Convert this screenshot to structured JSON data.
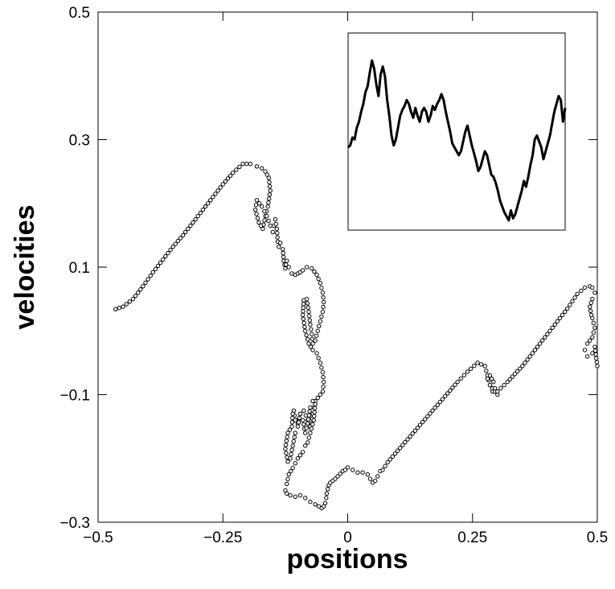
{
  "chart_data": [
    {
      "type": "scatter",
      "title": "",
      "xlabel": "positions",
      "ylabel": "velocities",
      "xlim": [
        -0.5,
        0.5
      ],
      "ylim": [
        -0.3,
        0.5
      ],
      "xticks": [
        -0.5,
        -0.25,
        0,
        0.25,
        0.5
      ],
      "xtick_labels": [
        "−0.5",
        "−0.25",
        "0",
        "0.25",
        "0.5"
      ],
      "yticks": [
        -0.3,
        -0.1,
        0.1,
        0.3,
        0.5
      ],
      "ytick_labels": [
        "−0.3",
        "−0.1",
        "0.1",
        "0.3",
        "0.5"
      ],
      "grid": false,
      "marker": "open-circle",
      "marker_color": "#000000",
      "series": [
        {
          "x": [
            -0.465,
            -0.45,
            -0.43,
            -0.41,
            -0.39,
            -0.37,
            -0.35,
            -0.33,
            -0.31,
            -0.29,
            -0.27,
            -0.25,
            -0.23,
            -0.21,
            -0.195,
            -0.182,
            -0.172,
            -0.165,
            -0.158,
            -0.155,
            -0.16,
            -0.165,
            -0.17,
            -0.178,
            -0.185,
            -0.182,
            -0.172,
            -0.162,
            -0.155,
            -0.15,
            -0.148,
            -0.145,
            -0.142,
            -0.14,
            -0.138,
            -0.135,
            -0.13,
            -0.128,
            -0.125,
            -0.122,
            -0.118,
            -0.112,
            -0.105,
            -0.1,
            -0.095,
            -0.09,
            -0.082,
            -0.072,
            -0.062,
            -0.055,
            -0.05,
            -0.048,
            -0.05,
            -0.055,
            -0.06,
            -0.065,
            -0.07,
            -0.072,
            -0.075,
            -0.078,
            -0.082,
            -0.088,
            -0.09,
            -0.085,
            -0.078,
            -0.07,
            -0.062,
            -0.055,
            -0.05,
            -0.048,
            -0.05,
            -0.055,
            -0.06,
            -0.065,
            -0.068,
            -0.07,
            -0.072,
            -0.075,
            -0.08,
            -0.088,
            -0.095,
            -0.1,
            -0.105,
            -0.108,
            -0.11,
            -0.112,
            -0.12,
            -0.125,
            -0.12,
            -0.115,
            -0.11,
            -0.105,
            -0.1,
            -0.095,
            -0.09,
            -0.085,
            -0.08,
            -0.075,
            -0.07,
            -0.065,
            -0.068,
            -0.075,
            -0.08,
            -0.085,
            -0.09,
            -0.1,
            -0.11,
            -0.118,
            -0.122,
            -0.125,
            -0.122,
            -0.115,
            -0.105,
            -0.095,
            -0.085,
            -0.075,
            -0.065,
            -0.058,
            -0.052,
            -0.048,
            -0.045,
            -0.043,
            -0.042,
            -0.04,
            -0.038,
            -0.035,
            -0.03,
            -0.025,
            -0.02,
            -0.015,
            -0.01,
            -0.005,
            0.0,
            0.01,
            0.02,
            0.03,
            0.04,
            0.045,
            0.05,
            0.055,
            0.06,
            0.065,
            0.07,
            0.08,
            0.1,
            0.12,
            0.14,
            0.16,
            0.18,
            0.2,
            0.22,
            0.24,
            0.26,
            0.275,
            0.28,
            0.285,
            0.29,
            0.3,
            0.295,
            0.285,
            0.28,
            0.285,
            0.292,
            0.295,
            0.3,
            0.32,
            0.35,
            0.38,
            0.41,
            0.44,
            0.46,
            0.475,
            0.485,
            0.49,
            0.495,
            0.49,
            0.485,
            0.488,
            0.49,
            0.495,
            0.49,
            0.48,
            0.475,
            0.48,
            0.49,
            0.495,
            0.5
          ],
          "y": [
            0.034,
            0.038,
            0.05,
            0.07,
            0.092,
            0.112,
            0.132,
            0.15,
            0.17,
            0.19,
            0.21,
            0.23,
            0.248,
            0.262,
            0.262,
            0.258,
            0.255,
            0.25,
            0.24,
            0.22,
            0.195,
            0.18,
            0.16,
            0.17,
            0.19,
            0.205,
            0.195,
            0.18,
            0.165,
            0.155,
            0.165,
            0.175,
            0.16,
            0.14,
            0.132,
            0.138,
            0.128,
            0.11,
            0.098,
            0.11,
            0.1,
            0.09,
            0.088,
            0.09,
            0.092,
            0.095,
            0.1,
            0.098,
            0.088,
            0.075,
            0.06,
            0.045,
            0.03,
            0.015,
            0.0,
            -0.015,
            -0.02,
            -0.005,
            0.01,
            0.03,
            0.05,
            0.048,
            0.025,
            0.0,
            -0.02,
            -0.03,
            -0.035,
            -0.05,
            -0.065,
            -0.08,
            -0.095,
            -0.1,
            -0.105,
            -0.11,
            -0.12,
            -0.13,
            -0.145,
            -0.15,
            -0.14,
            -0.125,
            -0.13,
            -0.145,
            -0.14,
            -0.125,
            -0.13,
            -0.15,
            -0.16,
            -0.185,
            -0.205,
            -0.2,
            -0.18,
            -0.16,
            -0.15,
            -0.13,
            -0.14,
            -0.16,
            -0.145,
            -0.12,
            -0.11,
            -0.115,
            -0.14,
            -0.16,
            -0.175,
            -0.18,
            -0.19,
            -0.2,
            -0.215,
            -0.225,
            -0.24,
            -0.25,
            -0.255,
            -0.258,
            -0.26,
            -0.258,
            -0.262,
            -0.268,
            -0.272,
            -0.275,
            -0.278,
            -0.275,
            -0.27,
            -0.262,
            -0.255,
            -0.248,
            -0.242,
            -0.238,
            -0.235,
            -0.232,
            -0.228,
            -0.224,
            -0.22,
            -0.218,
            -0.214,
            -0.218,
            -0.222,
            -0.222,
            -0.225,
            -0.232,
            -0.238,
            -0.235,
            -0.228,
            -0.22,
            -0.218,
            -0.206,
            -0.188,
            -0.17,
            -0.152,
            -0.134,
            -0.116,
            -0.098,
            -0.08,
            -0.064,
            -0.05,
            -0.055,
            -0.07,
            -0.085,
            -0.095,
            -0.1,
            -0.095,
            -0.085,
            -0.075,
            -0.07,
            -0.08,
            -0.09,
            -0.095,
            -0.08,
            -0.055,
            -0.025,
            0.005,
            0.035,
            0.058,
            0.068,
            0.07,
            0.068,
            0.06,
            0.05,
            0.038,
            0.025,
            0.02,
            0.005,
            -0.01,
            -0.02,
            -0.03,
            -0.04,
            -0.035,
            -0.025,
            -0.055
          ]
        }
      ]
    },
    {
      "type": "line",
      "title": "",
      "xlabel": "",
      "ylabel": "",
      "axes_ticks": false,
      "grid": false,
      "series": [
        {
          "x": [
            0,
            1,
            2,
            3,
            4,
            5,
            6,
            7,
            8,
            9,
            10,
            11,
            12,
            13,
            14,
            15,
            16,
            17,
            18,
            19,
            20,
            21,
            22,
            23,
            24,
            25,
            26,
            27,
            28,
            29,
            30,
            31,
            32,
            33,
            34,
            35,
            36,
            37,
            38,
            39,
            40,
            41,
            42,
            43,
            44,
            45,
            46,
            47,
            48,
            49,
            50,
            51,
            52,
            53,
            54,
            55,
            56,
            57,
            58,
            59,
            60,
            61,
            62,
            63,
            64,
            65,
            66,
            67,
            68,
            69,
            70,
            71,
            72,
            73,
            74,
            75,
            76,
            77,
            78,
            79,
            80,
            81,
            82,
            83,
            84,
            85,
            86,
            87,
            88,
            89,
            90,
            91,
            92,
            93,
            94,
            95,
            96,
            97,
            98,
            99,
            100
          ],
          "y": [
            0.42,
            0.43,
            0.47,
            0.46,
            0.52,
            0.55,
            0.6,
            0.64,
            0.7,
            0.73,
            0.8,
            0.86,
            0.82,
            0.74,
            0.68,
            0.79,
            0.83,
            0.78,
            0.66,
            0.58,
            0.48,
            0.43,
            0.46,
            0.52,
            0.58,
            0.61,
            0.63,
            0.66,
            0.64,
            0.6,
            0.57,
            0.62,
            0.58,
            0.55,
            0.6,
            0.62,
            0.6,
            0.55,
            0.58,
            0.63,
            0.61,
            0.64,
            0.66,
            0.69,
            0.66,
            0.6,
            0.55,
            0.5,
            0.44,
            0.42,
            0.4,
            0.38,
            0.4,
            0.45,
            0.5,
            0.53,
            0.48,
            0.43,
            0.39,
            0.35,
            0.3,
            0.32,
            0.36,
            0.4,
            0.38,
            0.33,
            0.28,
            0.27,
            0.24,
            0.2,
            0.15,
            0.12,
            0.09,
            0.07,
            0.05,
            0.1,
            0.06,
            0.08,
            0.12,
            0.16,
            0.2,
            0.25,
            0.22,
            0.27,
            0.33,
            0.38,
            0.46,
            0.48,
            0.45,
            0.42,
            0.36,
            0.4,
            0.44,
            0.48,
            0.54,
            0.6,
            0.64,
            0.68,
            0.66,
            0.55,
            0.62
          ]
        }
      ]
    }
  ]
}
